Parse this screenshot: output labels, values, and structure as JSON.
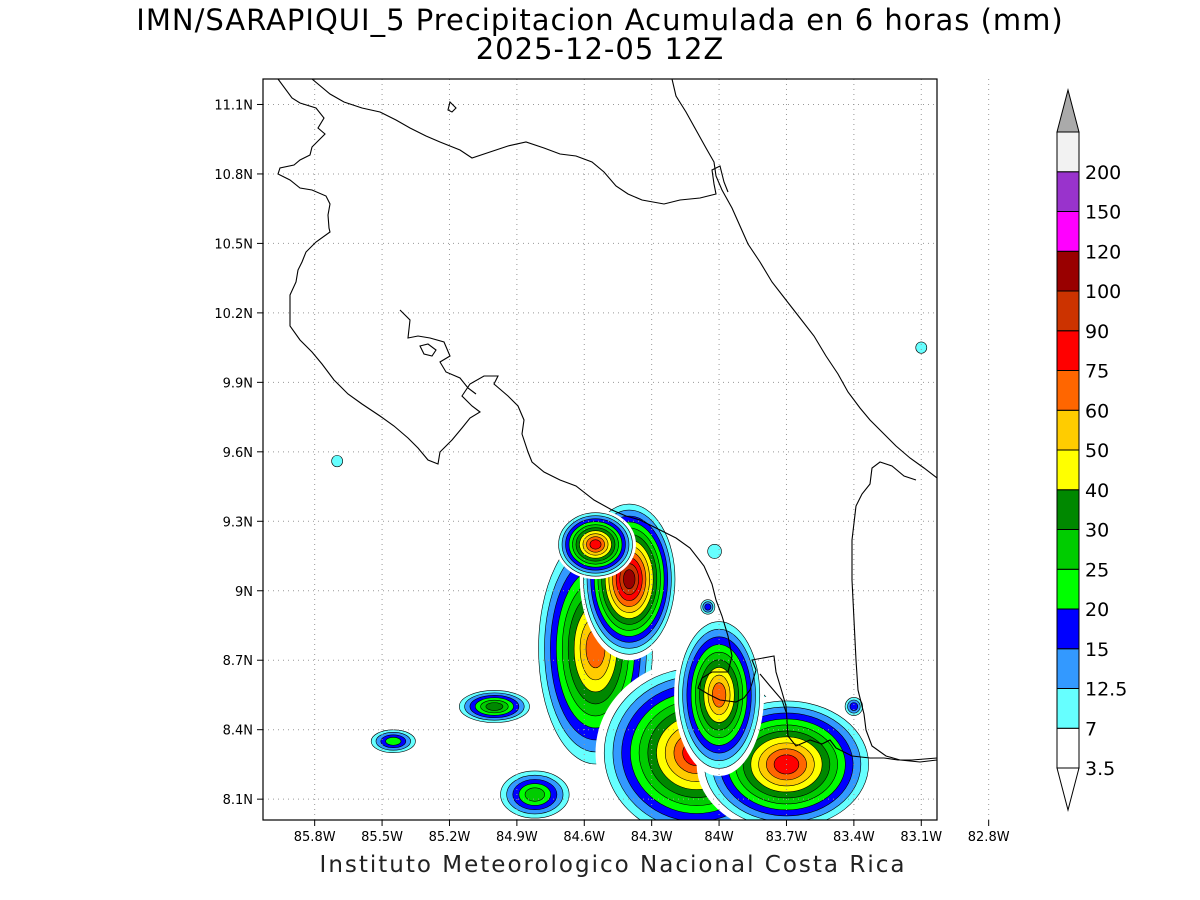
{
  "title_line1": "IMN/SARAPIQUI_5 Precipitacion Acumulada en 6 horas (mm)",
  "title_line2": "2025-12-05 12Z",
  "credit": "Instituto Meteorologico Nacional Costa Rica",
  "map": {
    "lon_ticks": [
      "85.8W",
      "85.5W",
      "85.2W",
      "84.9W",
      "84.6W",
      "84.3W",
      "84W",
      "83.7W",
      "83.4W",
      "83.1W",
      "82.8W"
    ],
    "lat_ticks": [
      "11.1N",
      "10.8N",
      "10.5N",
      "10.2N",
      "9.9N",
      "9.6N",
      "9.3N",
      "9N",
      "8.7N",
      "8.4N",
      "8.1N"
    ],
    "lon_range": [
      -86.03,
      -83.03
    ],
    "lat_range": [
      8.01,
      11.21
    ],
    "grid": true,
    "grid_style": "dotted"
  },
  "colorbar": {
    "labels": [
      "3.5",
      "7",
      "12.5",
      "15",
      "20",
      "25",
      "30",
      "40",
      "50",
      "60",
      "75",
      "90",
      "100",
      "120",
      "150",
      "200"
    ],
    "colors": [
      "#ffffff",
      "#66ffff",
      "#3399ff",
      "#0000ff",
      "#00ff00",
      "#00cc00",
      "#008800",
      "#ffff00",
      "#ffcc00",
      "#ff6600",
      "#ff0000",
      "#cc3300",
      "#990000",
      "#ff00ff",
      "#9933cc",
      "#f2f2f2"
    ],
    "top_arrow_color": "#aaaaaa",
    "bottom_arrow_color": "#ffffff"
  },
  "precip_cells": [
    {
      "lon": -84.55,
      "lat": 8.75,
      "rx": 0.28,
      "ry": 0.55,
      "v": 70
    },
    {
      "lon": -84.4,
      "lat": 9.05,
      "rx": 0.22,
      "ry": 0.35,
      "v": 110
    },
    {
      "lon": -84.55,
      "lat": 9.2,
      "rx": 0.18,
      "ry": 0.15,
      "v": 80
    },
    {
      "lon": -84.1,
      "lat": 8.3,
      "rx": 0.45,
      "ry": 0.4,
      "v": 85
    },
    {
      "lon": -83.7,
      "lat": 8.25,
      "rx": 0.4,
      "ry": 0.3,
      "v": 80
    },
    {
      "lon": -84.0,
      "lat": 8.55,
      "rx": 0.2,
      "ry": 0.35,
      "v": 65
    },
    {
      "lon": -85.0,
      "lat": 8.5,
      "rx": 0.18,
      "ry": 0.08,
      "v": 35
    },
    {
      "lon": -85.45,
      "lat": 8.35,
      "rx": 0.12,
      "ry": 0.06,
      "v": 22
    },
    {
      "lon": -84.82,
      "lat": 8.12,
      "rx": 0.18,
      "ry": 0.12,
      "v": 28
    },
    {
      "lon": -84.02,
      "lat": 9.17,
      "rx": 0.05,
      "ry": 0.05,
      "v": 12
    },
    {
      "lon": -84.05,
      "lat": 8.93,
      "rx": 0.04,
      "ry": 0.04,
      "v": 18
    },
    {
      "lon": -85.7,
      "lat": 9.56,
      "rx": 0.04,
      "ry": 0.04,
      "v": 12
    },
    {
      "lon": -83.4,
      "lat": 8.5,
      "rx": 0.05,
      "ry": 0.05,
      "v": 18
    },
    {
      "lon": -83.1,
      "lat": 10.05,
      "rx": 0.04,
      "ry": 0.04,
      "v": 7
    }
  ]
}
